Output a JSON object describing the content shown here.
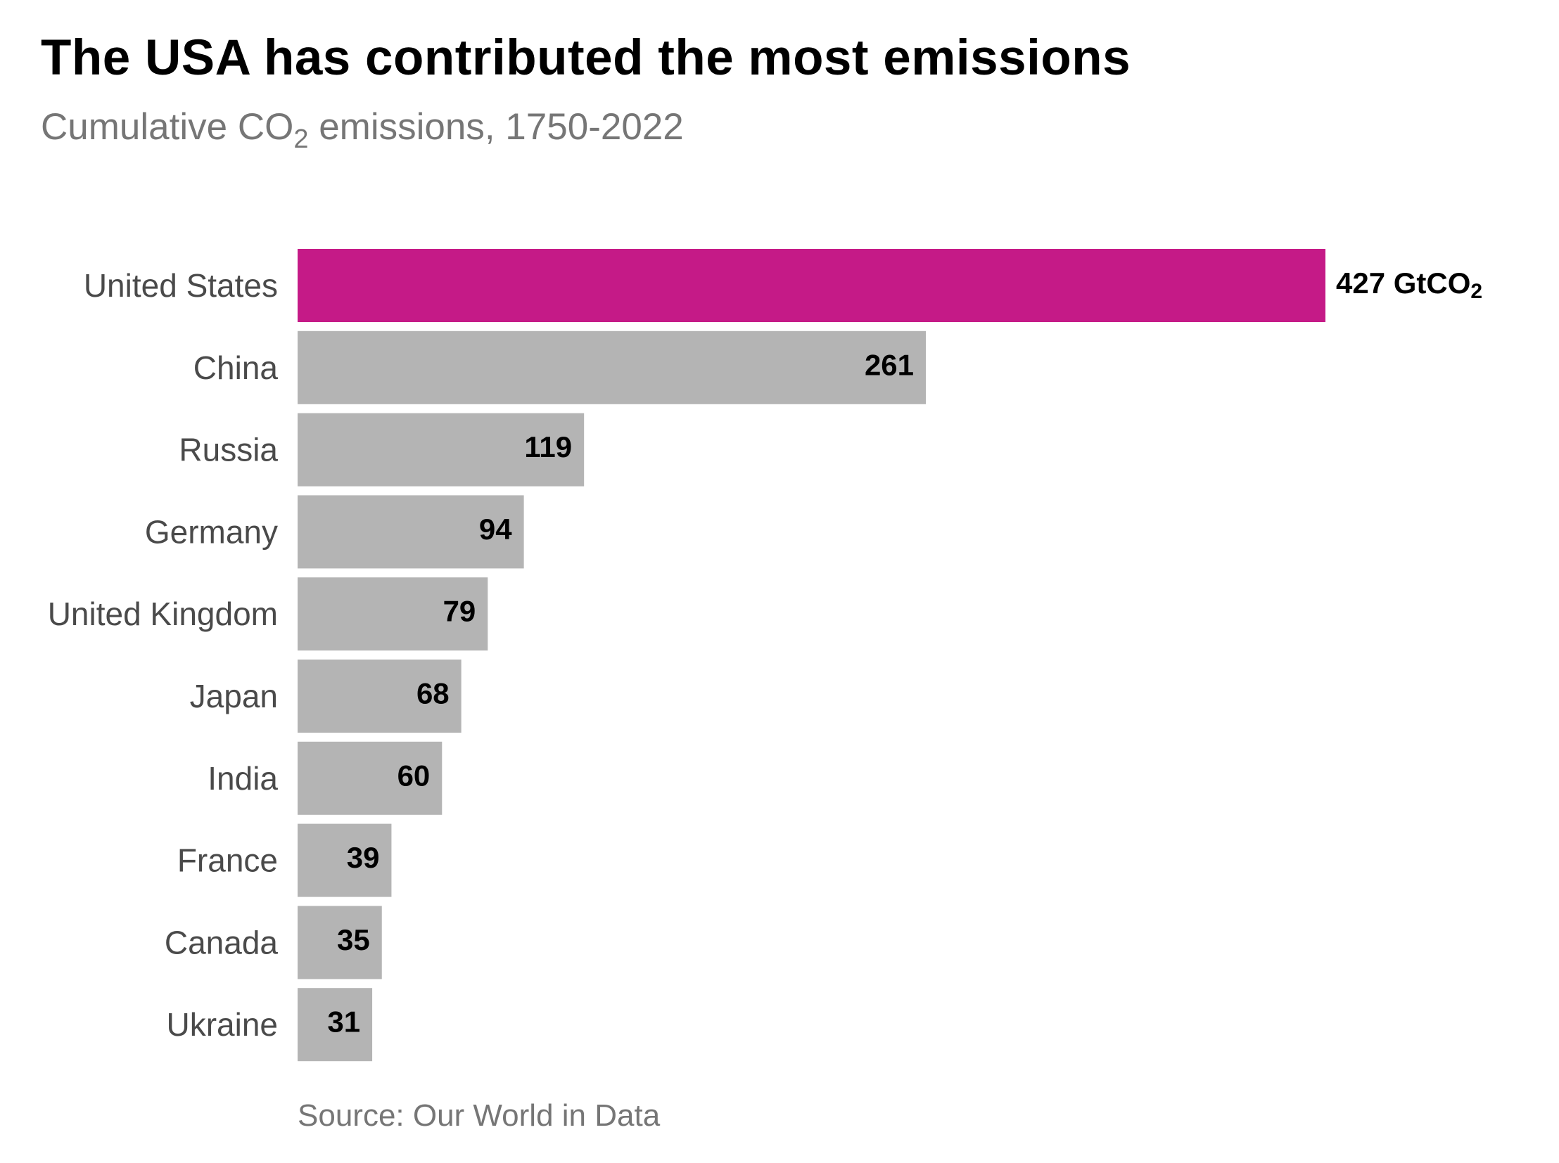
{
  "title": "The USA has contributed the most emissions",
  "subtitle": {
    "prefix": "Cumulative CO",
    "subscript": "2",
    "suffix": " emissions, 1750-2022"
  },
  "source": "Source: Our World in Data",
  "colors": {
    "highlight": "#c51a87",
    "bar": "#b4b4b4",
    "category_label": "#4a4a4a",
    "value_label": "#000000",
    "title": "#000000",
    "subtitle": "#767676"
  },
  "chart_data": {
    "type": "bar",
    "orientation": "horizontal",
    "categories": [
      "United States",
      "China",
      "Russia",
      "Germany",
      "United Kingdom",
      "Japan",
      "India",
      "France",
      "Canada",
      "Ukraine"
    ],
    "values": [
      427,
      261,
      119,
      94,
      79,
      68,
      60,
      39,
      35,
      31
    ],
    "value_labels": [
      "427 GtCO",
      "261",
      "119",
      "94",
      "79",
      "68",
      "60",
      "39",
      "35",
      "31"
    ],
    "first_label_subscript": "2",
    "highlight_index": 0,
    "xlim": [
      0,
      427
    ],
    "grid": false,
    "legend": "none"
  }
}
